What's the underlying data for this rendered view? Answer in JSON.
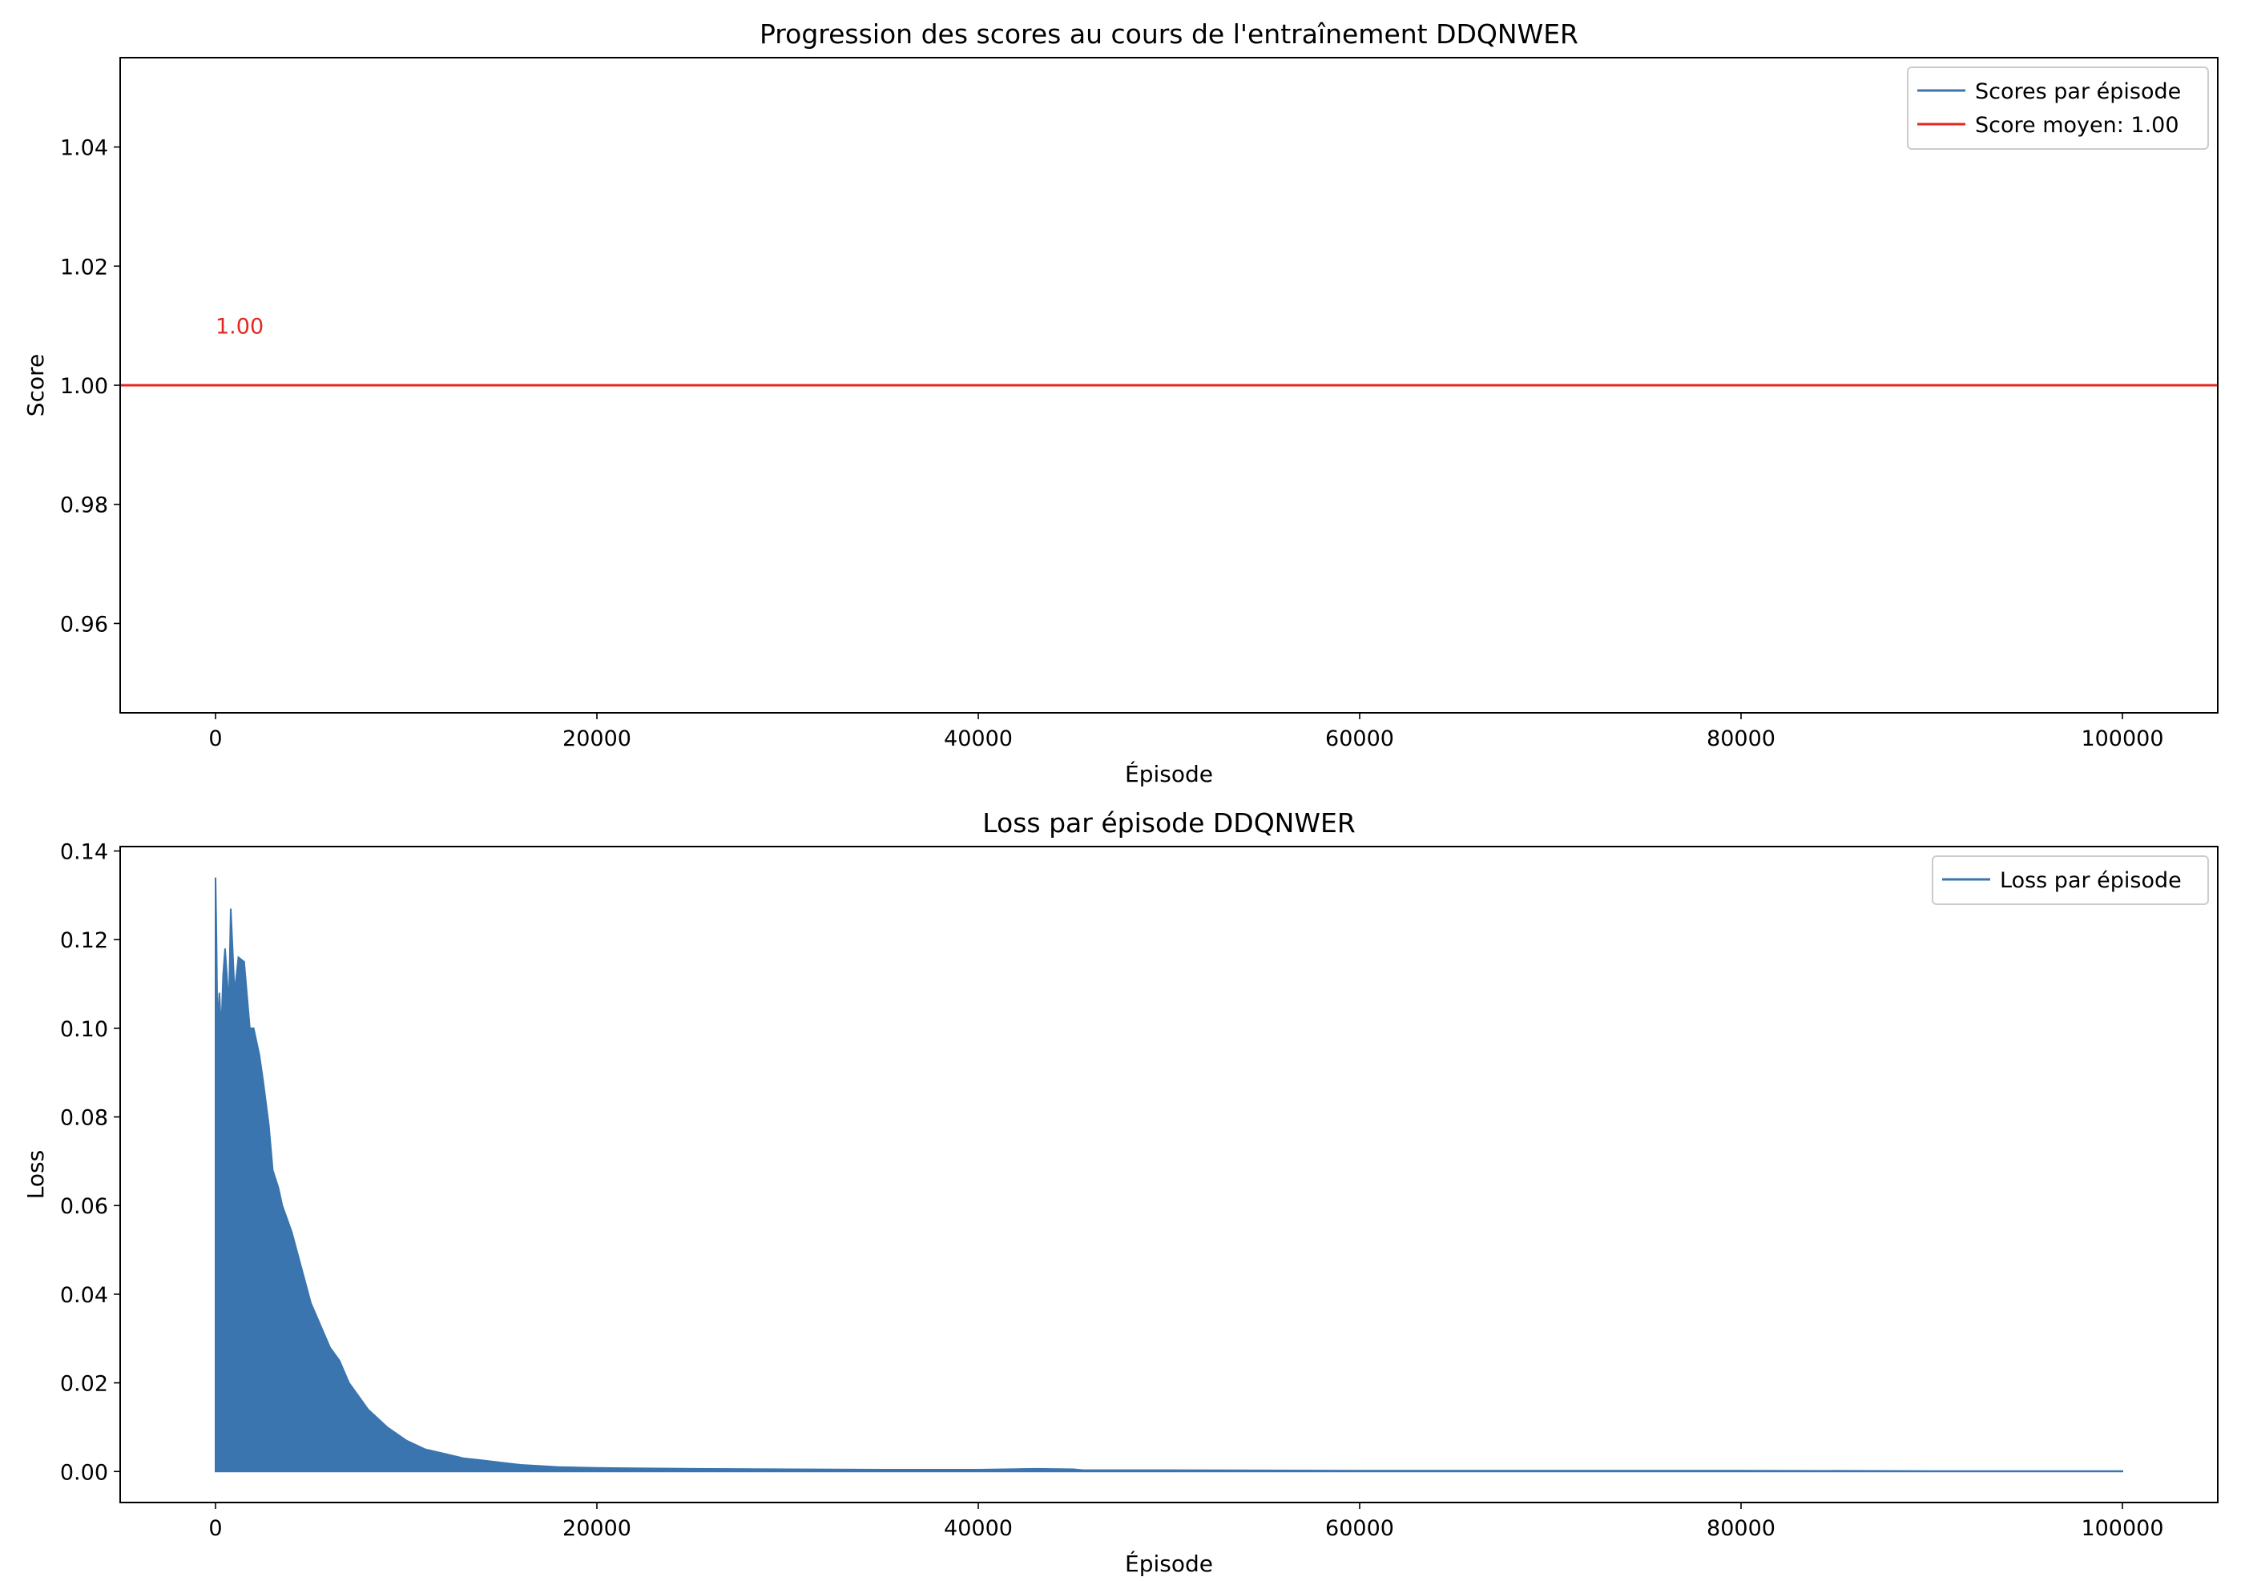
{
  "chart_data": [
    {
      "type": "line",
      "title": "Progression des scores au cours de l'entraînement DDQNWER",
      "xlabel": "Épisode",
      "ylabel": "Score",
      "xlim": [
        -5000,
        105000
      ],
      "ylim": [
        0.945,
        1.055
      ],
      "x_ticks": [
        0,
        20000,
        40000,
        60000,
        80000,
        100000
      ],
      "y_ticks": [
        0.96,
        0.98,
        1.0,
        1.02,
        1.04
      ],
      "x_tick_labels": [
        "0",
        "20000",
        "40000",
        "60000",
        "80000",
        "100000"
      ],
      "y_tick_labels": [
        "0.96",
        "0.98",
        "1.00",
        "1.02",
        "1.04"
      ],
      "grid": false,
      "legend": "top-right",
      "series": [
        {
          "name": "Scores par épisode",
          "color": "#3a75af",
          "x": [
            0,
            100000
          ],
          "y": [
            1.0,
            1.0
          ]
        },
        {
          "name": "Score moyen: 1.00",
          "color": "#e6261f",
          "type": "hline",
          "y": 1.0
        }
      ],
      "annotations": [
        {
          "text": "1.00",
          "x": 0,
          "y": 1.01,
          "color": "#e6261f"
        }
      ]
    },
    {
      "type": "line",
      "title": "Loss par épisode DDQNWER",
      "xlabel": "Épisode",
      "ylabel": "Loss",
      "xlim": [
        -5000,
        105000
      ],
      "ylim": [
        -0.007,
        0.141
      ],
      "x_ticks": [
        0,
        20000,
        40000,
        60000,
        80000,
        100000
      ],
      "y_ticks": [
        0.0,
        0.02,
        0.04,
        0.06,
        0.08,
        0.1,
        0.12,
        0.14
      ],
      "x_tick_labels": [
        "0",
        "20000",
        "40000",
        "60000",
        "80000",
        "100000"
      ],
      "y_tick_labels": [
        "0.00",
        "0.02",
        "0.04",
        "0.06",
        "0.08",
        "0.10",
        "0.12",
        "0.14"
      ],
      "grid": false,
      "legend": "top-right",
      "series": [
        {
          "name": "Loss par épisode",
          "color": "#3a75af",
          "fill": true,
          "x": [
            0,
            50,
            100,
            200,
            300,
            400,
            500,
            700,
            800,
            1000,
            1200,
            1500,
            1800,
            2000,
            2300,
            2500,
            2800,
            3000,
            3300,
            3500,
            4000,
            4500,
            5000,
            5500,
            6000,
            6500,
            7000,
            7500,
            8000,
            8500,
            9000,
            10000,
            11000,
            12000,
            13000,
            14000,
            15000,
            16000,
            18000,
            20000,
            25000,
            30000,
            35000,
            40000,
            43000,
            45000,
            45500,
            50000,
            60000,
            70000,
            80000,
            90000,
            100000
          ],
          "y": [
            0.134,
            0.12,
            0.1,
            0.108,
            0.099,
            0.112,
            0.118,
            0.105,
            0.127,
            0.108,
            0.116,
            0.115,
            0.1,
            0.1,
            0.094,
            0.088,
            0.078,
            0.068,
            0.064,
            0.06,
            0.054,
            0.046,
            0.038,
            0.033,
            0.028,
            0.025,
            0.02,
            0.017,
            0.014,
            0.012,
            0.01,
            0.007,
            0.005,
            0.004,
            0.003,
            0.0025,
            0.002,
            0.0015,
            0.001,
            0.0008,
            0.0006,
            0.0005,
            0.0004,
            0.0004,
            0.0006,
            0.0005,
            0.0003,
            0.0003,
            0.0002,
            0.0002,
            0.0002,
            0.0001,
            0.0001
          ]
        }
      ]
    }
  ]
}
